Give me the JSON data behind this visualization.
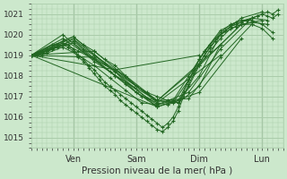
{
  "title": "",
  "xlabel": "Pression niveau de la mer( hPa )",
  "ylabel": "",
  "bg_color": "#cce8cc",
  "plot_bg_color": "#cce8cc",
  "grid_color": "#aaccaa",
  "line_color": "#226622",
  "marker_color": "#226622",
  "xlim": [
    0,
    96
  ],
  "ylim": [
    1014.5,
    1021.5
  ],
  "yticks": [
    1015,
    1016,
    1017,
    1018,
    1019,
    1020,
    1021
  ],
  "xtick_positions": [
    16,
    40,
    64,
    88
  ],
  "xtick_labels": [
    "Ven",
    "Sam",
    "Dim",
    "Lun"
  ],
  "series": [
    {
      "x": [
        0,
        2,
        4,
        6,
        8,
        10,
        12,
        14,
        16,
        18,
        20,
        22,
        24,
        26,
        28,
        30,
        32,
        34,
        36,
        38,
        40,
        42,
        44,
        46,
        48,
        50,
        52,
        54,
        56,
        58,
        60,
        62,
        64,
        66,
        68,
        70,
        72,
        74,
        76,
        78,
        80,
        82,
        84,
        86,
        88,
        90,
        92,
        94
      ],
      "y": [
        1019.0,
        1019.1,
        1019.2,
        1019.3,
        1019.4,
        1019.5,
        1019.6,
        1019.5,
        1019.3,
        1019.0,
        1018.8,
        1018.5,
        1018.3,
        1018.0,
        1017.7,
        1017.5,
        1017.3,
        1017.1,
        1016.9,
        1016.7,
        1016.5,
        1016.3,
        1016.1,
        1015.9,
        1015.7,
        1015.5,
        1015.7,
        1016.0,
        1016.5,
        1017.2,
        1017.8,
        1018.3,
        1018.8,
        1019.2,
        1019.5,
        1019.8,
        1020.0,
        1020.2,
        1020.4,
        1020.5,
        1020.6,
        1020.7,
        1020.8,
        1020.9,
        1021.0,
        1021.1,
        1021.0,
        1021.2
      ]
    },
    {
      "x": [
        0,
        2,
        4,
        6,
        8,
        10,
        12,
        14,
        16,
        18,
        20,
        22,
        24,
        26,
        28,
        30,
        32,
        34,
        36,
        38,
        40,
        42,
        44,
        46,
        48,
        50,
        52,
        54,
        56,
        58,
        60,
        62,
        64,
        66,
        68,
        70,
        72,
        74,
        76,
        78,
        80,
        82,
        84,
        86,
        88,
        90,
        92,
        94
      ],
      "y": [
        1019.0,
        1019.0,
        1019.1,
        1019.2,
        1019.3,
        1019.4,
        1019.5,
        1019.4,
        1019.2,
        1018.9,
        1018.7,
        1018.4,
        1018.1,
        1017.8,
        1017.5,
        1017.3,
        1017.1,
        1016.8,
        1016.6,
        1016.4,
        1016.2,
        1016.0,
        1015.8,
        1015.6,
        1015.4,
        1015.3,
        1015.5,
        1015.8,
        1016.3,
        1017.0,
        1017.6,
        1018.1,
        1018.6,
        1019.0,
        1019.4,
        1019.7,
        1020.0,
        1020.2,
        1020.4,
        1020.5,
        1020.6,
        1020.7,
        1020.8,
        1020.9,
        1021.0,
        1020.9,
        1020.8,
        1021.0
      ]
    },
    {
      "x": [
        0,
        4,
        8,
        12,
        16,
        20,
        24,
        28,
        32,
        36,
        40,
        44,
        48,
        52,
        56,
        60,
        64,
        68,
        72,
        76,
        80,
        84,
        88,
        92
      ],
      "y": [
        1019.0,
        1019.1,
        1019.4,
        1019.7,
        1019.9,
        1019.5,
        1019.2,
        1018.8,
        1018.5,
        1018.0,
        1017.5,
        1017.2,
        1017.0,
        1016.8,
        1016.7,
        1017.5,
        1018.5,
        1019.2,
        1019.8,
        1020.3,
        1020.5,
        1020.5,
        1020.3,
        1019.8
      ]
    },
    {
      "x": [
        0,
        4,
        8,
        12,
        16,
        20,
        24,
        28,
        32,
        36,
        40,
        44,
        48,
        52,
        56,
        60,
        64,
        68,
        72,
        76,
        80,
        84,
        88,
        92
      ],
      "y": [
        1019.0,
        1019.0,
        1019.3,
        1019.5,
        1019.8,
        1019.3,
        1019.0,
        1018.6,
        1018.2,
        1017.7,
        1017.2,
        1016.9,
        1016.7,
        1016.6,
        1016.8,
        1017.8,
        1018.8,
        1019.5,
        1020.1,
        1020.5,
        1020.7,
        1020.7,
        1020.5,
        1020.1
      ]
    },
    {
      "x": [
        0,
        6,
        12,
        18,
        24,
        30,
        36,
        42,
        48,
        54,
        60,
        66,
        72,
        78,
        84,
        90
      ],
      "y": [
        1019.0,
        1019.2,
        1019.6,
        1019.2,
        1018.8,
        1018.2,
        1017.6,
        1017.0,
        1016.8,
        1016.7,
        1017.8,
        1019.0,
        1020.0,
        1020.4,
        1020.6,
        1020.5
      ]
    },
    {
      "x": [
        0,
        6,
        12,
        18,
        24,
        30,
        36,
        42,
        48,
        54,
        60,
        66,
        72,
        78,
        84,
        90
      ],
      "y": [
        1019.0,
        1019.1,
        1019.4,
        1019.0,
        1018.5,
        1017.9,
        1017.3,
        1016.7,
        1016.6,
        1016.8,
        1018.0,
        1019.2,
        1020.2,
        1020.6,
        1020.8,
        1020.7
      ]
    },
    {
      "x": [
        0,
        8,
        16,
        24,
        32,
        40,
        48,
        56,
        64,
        72,
        80,
        88
      ],
      "y": [
        1019.0,
        1019.5,
        1019.8,
        1019.0,
        1018.3,
        1017.5,
        1016.8,
        1016.7,
        1017.5,
        1019.5,
        1020.5,
        1020.7
      ]
    },
    {
      "x": [
        0,
        8,
        16,
        24,
        32,
        40,
        48,
        56,
        64,
        72,
        80,
        88
      ],
      "y": [
        1019.0,
        1019.3,
        1019.6,
        1018.8,
        1018.0,
        1017.2,
        1016.5,
        1016.8,
        1018.0,
        1020.0,
        1020.8,
        1021.1
      ]
    },
    {
      "x": [
        0,
        12,
        24,
        36,
        48,
        60,
        72,
        84
      ],
      "y": [
        1019.0,
        1019.8,
        1018.8,
        1018.0,
        1016.8,
        1016.9,
        1018.9,
        1020.5
      ]
    },
    {
      "x": [
        0,
        12,
        24,
        36,
        48,
        60,
        72,
        84
      ],
      "y": [
        1019.0,
        1020.0,
        1018.7,
        1017.7,
        1016.6,
        1017.2,
        1019.3,
        1020.8
      ]
    },
    {
      "x": [
        0,
        16,
        32,
        48,
        64,
        80
      ],
      "y": [
        1019.0,
        1019.9,
        1018.2,
        1016.5,
        1017.2,
        1019.8
      ]
    },
    {
      "x": [
        0,
        16,
        32,
        48,
        64,
        80
      ],
      "y": [
        1019.0,
        1019.7,
        1018.0,
        1016.8,
        1018.5,
        1020.5
      ]
    },
    {
      "x": [
        0,
        24,
        48,
        72
      ],
      "y": [
        1019.0,
        1019.2,
        1016.7,
        1019.0
      ]
    },
    {
      "x": [
        0,
        24,
        48,
        72
      ],
      "y": [
        1019.0,
        1018.9,
        1016.8,
        1019.5
      ]
    },
    {
      "x": [
        0,
        32,
        64
      ],
      "y": [
        1019.0,
        1018.3,
        1019.0
      ]
    },
    {
      "x": [
        0,
        48
      ],
      "y": [
        1019.0,
        1016.5
      ]
    }
  ]
}
